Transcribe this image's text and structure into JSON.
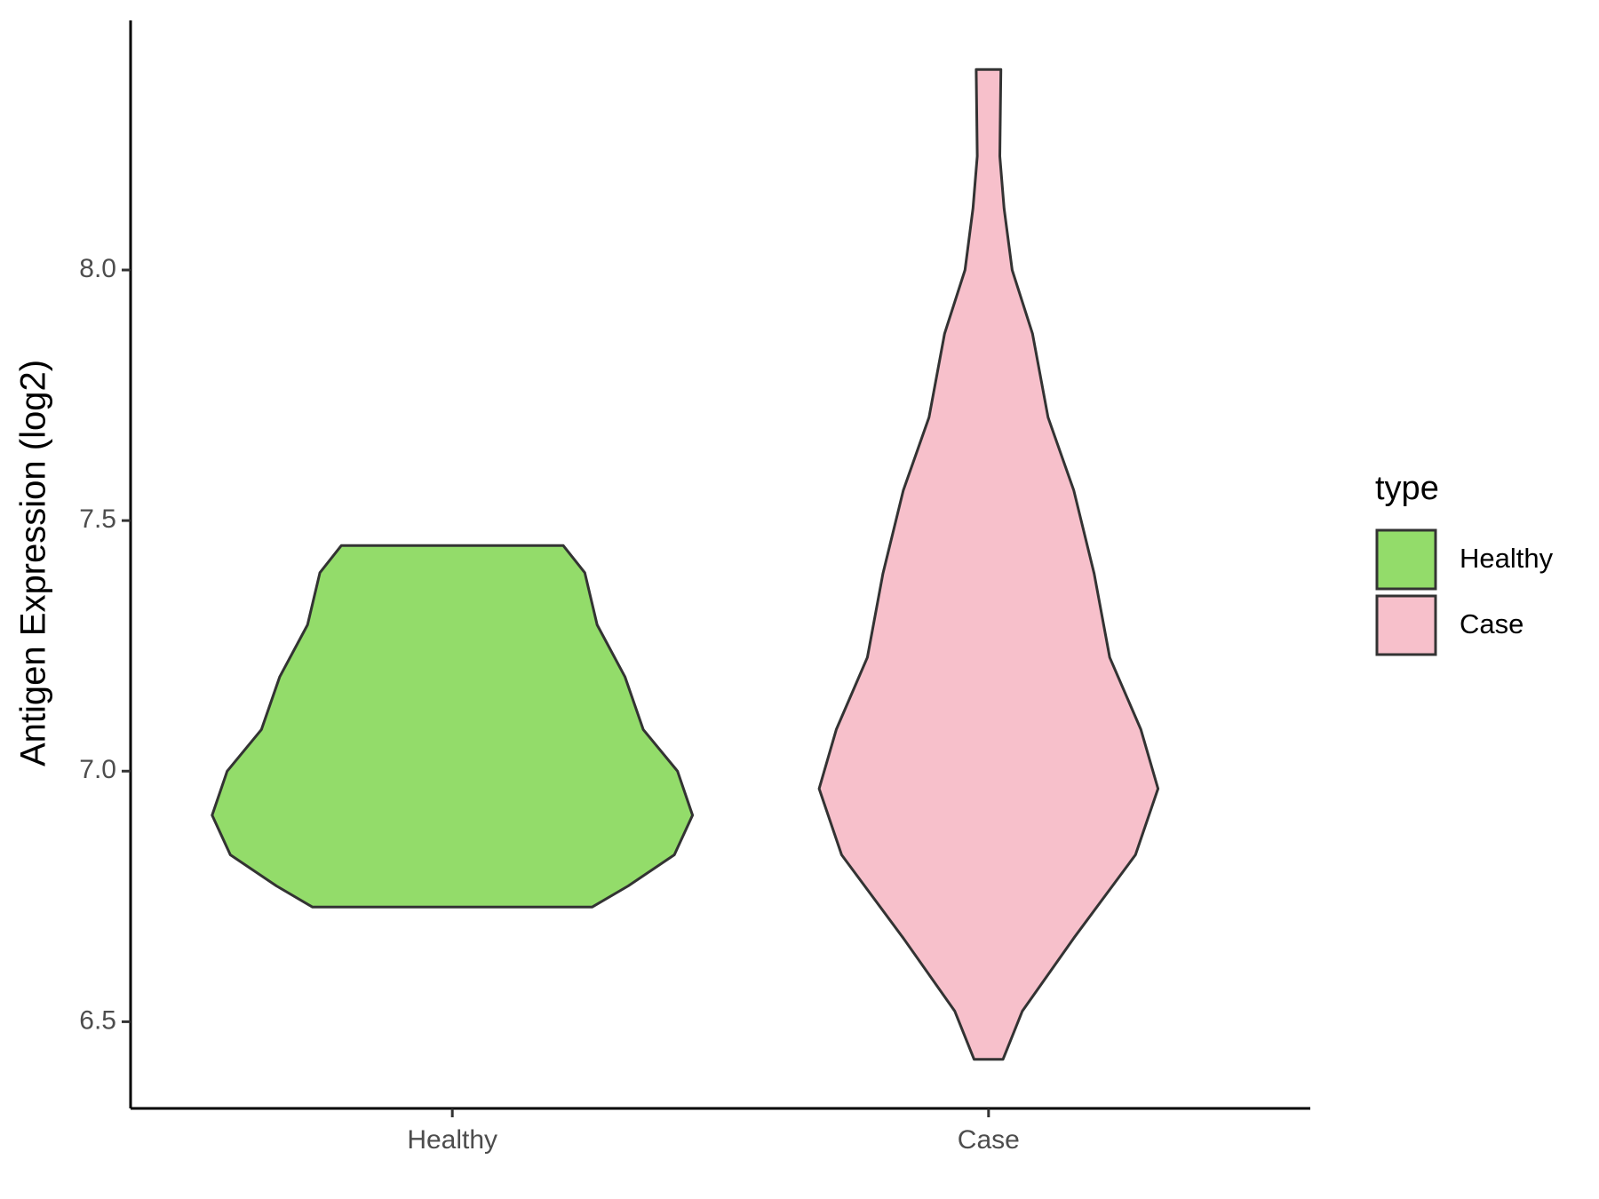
{
  "chart_data": {
    "type": "violin",
    "y_label": "Antigen Expression (log2)",
    "legend_title": "type",
    "legend_position": "right",
    "categories": [
      "Healthy",
      "Case"
    ],
    "ylim": [
      6.327,
      8.498
    ],
    "yticks": [
      {
        "value": 6.5,
        "label": "6.5"
      },
      {
        "value": 7,
        "label": "7.0"
      },
      {
        "value": 7.5,
        "label": "7.5"
      },
      {
        "value": 8,
        "label": "8.0"
      }
    ],
    "series": [
      {
        "name": "Healthy",
        "color": "#93dc6a",
        "y": [
          7.45,
          7.396,
          7.292,
          7.188,
          7.083,
          7.0,
          6.912,
          6.833,
          6.771,
          6.729
        ],
        "width": [
          0.207,
          0.247,
          0.27,
          0.322,
          0.356,
          0.42,
          0.448,
          0.414,
          0.328,
          0.261
        ]
      },
      {
        "name": "Case",
        "color": "#f7c0cb",
        "y": [
          8.4,
          8.227,
          8.123,
          8.0,
          7.873,
          7.706,
          7.56,
          7.394,
          7.227,
          7.083,
          6.965,
          6.833,
          6.667,
          6.521,
          6.425
        ],
        "width": [
          0.023,
          0.021,
          0.029,
          0.044,
          0.082,
          0.111,
          0.159,
          0.197,
          0.226,
          0.284,
          0.316,
          0.274,
          0.159,
          0.063,
          0.027
        ]
      }
    ]
  }
}
